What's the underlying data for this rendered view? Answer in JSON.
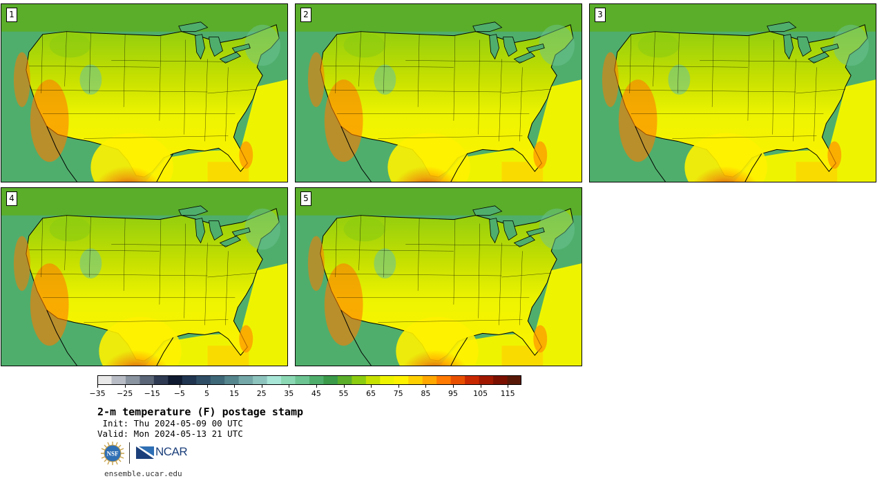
{
  "panels": [
    {
      "label": "1",
      "hot_shift": 0
    },
    {
      "label": "2",
      "hot_shift": 1
    },
    {
      "label": "3",
      "hot_shift": 2
    },
    {
      "label": "4",
      "hot_shift": 3
    },
    {
      "label": "5",
      "hot_shift": 4
    }
  ],
  "colorbar": {
    "min": -35,
    "max": 120,
    "step": 5,
    "tick_labels": [
      "−35",
      "−25",
      "−15",
      "−5",
      "5",
      "15",
      "25",
      "35",
      "45",
      "55",
      "65",
      "75",
      "85",
      "95",
      "105",
      "115"
    ],
    "colors": [
      "#e8e8e8",
      "#b8bcc4",
      "#8a93a0",
      "#5b6678",
      "#2e3a52",
      "#0f1a30",
      "#203550",
      "#2f4e66",
      "#3e6878",
      "#55868e",
      "#74a8a8",
      "#8ec4be",
      "#a8e6d8",
      "#8ad8b4",
      "#6cc492",
      "#4fae6c",
      "#3a9a4a",
      "#5aae2a",
      "#8ccc10",
      "#c6e000",
      "#eef400",
      "#fff200",
      "#ffd000",
      "#ffa800",
      "#ff7a00",
      "#e85000",
      "#c82800",
      "#a01800",
      "#7a1000",
      "#581808"
    ]
  },
  "title": "2-m temperature (F) postage stamp",
  "init": " Init: Thu 2024-05-09 00 UTC",
  "valid": "Valid: Mon 2024-05-13 21 UTC",
  "logos": {
    "nsf": "NSF",
    "ncar": "NCAR"
  },
  "site": "ensemble.ucar.edu"
}
